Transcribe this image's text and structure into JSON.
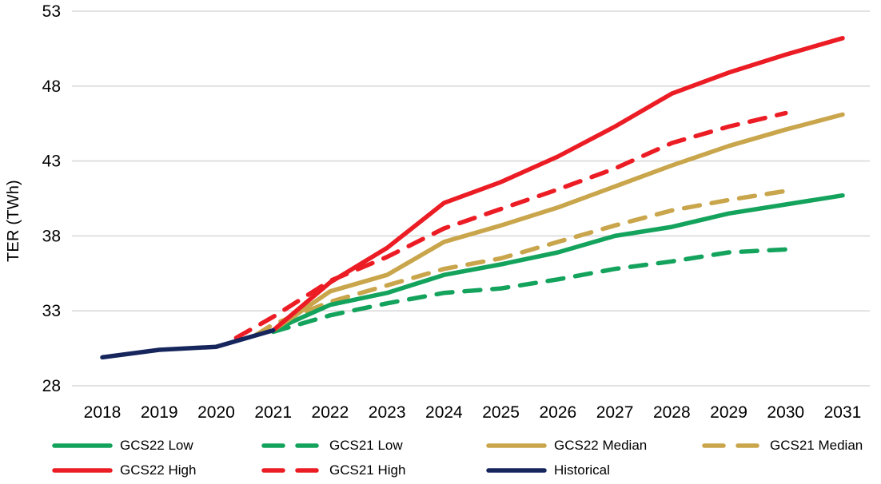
{
  "chart_data": {
    "type": "line",
    "title": "",
    "xlabel": "",
    "ylabel": "TER (TWh)",
    "ylim": [
      28,
      53
    ],
    "xlim": [
      2017.5,
      2031.5
    ],
    "y_ticks": [
      53,
      48,
      43,
      38,
      33,
      28
    ],
    "x_ticks": [
      2018,
      2019,
      2020,
      2021,
      2022,
      2023,
      2024,
      2025,
      2026,
      2027,
      2028,
      2029,
      2030,
      2031
    ],
    "grid": "horizontal",
    "grid_color": "#D9D9D9",
    "legend_position": "bottom",
    "series": [
      {
        "name": "GCS21 Low",
        "color": "#14A35C",
        "style": "dashed",
        "x": [
          2021,
          2022,
          2023,
          2024,
          2025,
          2026,
          2027,
          2028,
          2029,
          2030
        ],
        "y": [
          31.6,
          32.7,
          33.5,
          34.2,
          34.5,
          35.1,
          35.8,
          36.3,
          36.9,
          37.1
        ]
      },
      {
        "name": "GCS21 Median",
        "color": "#C9A54B",
        "style": "dashed",
        "x": [
          2020.7,
          2021,
          2022,
          2023,
          2024,
          2025,
          2026,
          2027,
          2028,
          2029,
          2030
        ],
        "y": [
          31.4,
          32.1,
          33.6,
          34.7,
          35.8,
          36.5,
          37.6,
          38.7,
          39.7,
          40.4,
          41.0
        ]
      },
      {
        "name": "GCS21 High",
        "color": "#EC1C24",
        "style": "dashed",
        "x": [
          2020.35,
          2021,
          2022,
          2023,
          2024,
          2025,
          2026,
          2027,
          2028,
          2029,
          2030
        ],
        "y": [
          31.2,
          32.6,
          35.0,
          36.6,
          38.5,
          39.8,
          41.1,
          42.5,
          44.2,
          45.3,
          46.2
        ]
      },
      {
        "name": "GCS22 Low",
        "color": "#14A35C",
        "style": "solid",
        "x": [
          2021,
          2022,
          2023,
          2024,
          2025,
          2026,
          2027,
          2028,
          2029,
          2030,
          2031
        ],
        "y": [
          31.7,
          33.4,
          34.2,
          35.4,
          36.1,
          36.9,
          38.0,
          38.6,
          39.5,
          40.1,
          40.7
        ]
      },
      {
        "name": "GCS22 Median",
        "color": "#C9A54B",
        "style": "solid",
        "x": [
          2021,
          2022,
          2023,
          2024,
          2025,
          2026,
          2027,
          2028,
          2029,
          2030,
          2031
        ],
        "y": [
          31.7,
          34.3,
          35.4,
          37.6,
          38.7,
          39.9,
          41.3,
          42.7,
          44.0,
          45.1,
          46.1
        ]
      },
      {
        "name": "GCS22 High",
        "color": "#EC1C24",
        "style": "solid",
        "x": [
          2021,
          2022,
          2023,
          2024,
          2025,
          2026,
          2027,
          2028,
          2029,
          2030,
          2031
        ],
        "y": [
          31.7,
          34.9,
          37.2,
          40.2,
          41.6,
          43.3,
          45.3,
          47.5,
          48.9,
          50.1,
          51.2
        ]
      },
      {
        "name": "Historical",
        "color": "#16265C",
        "style": "solid",
        "x": [
          2018,
          2019,
          2020,
          2021
        ],
        "y": [
          29.9,
          30.4,
          30.6,
          31.7
        ]
      }
    ],
    "legend_rows": [
      [
        "GCS22 Low",
        "GCS21 Low",
        "GCS22 Median",
        "GCS21 Median"
      ],
      [
        "GCS22 High",
        "GCS21 High",
        "Historical"
      ]
    ]
  }
}
